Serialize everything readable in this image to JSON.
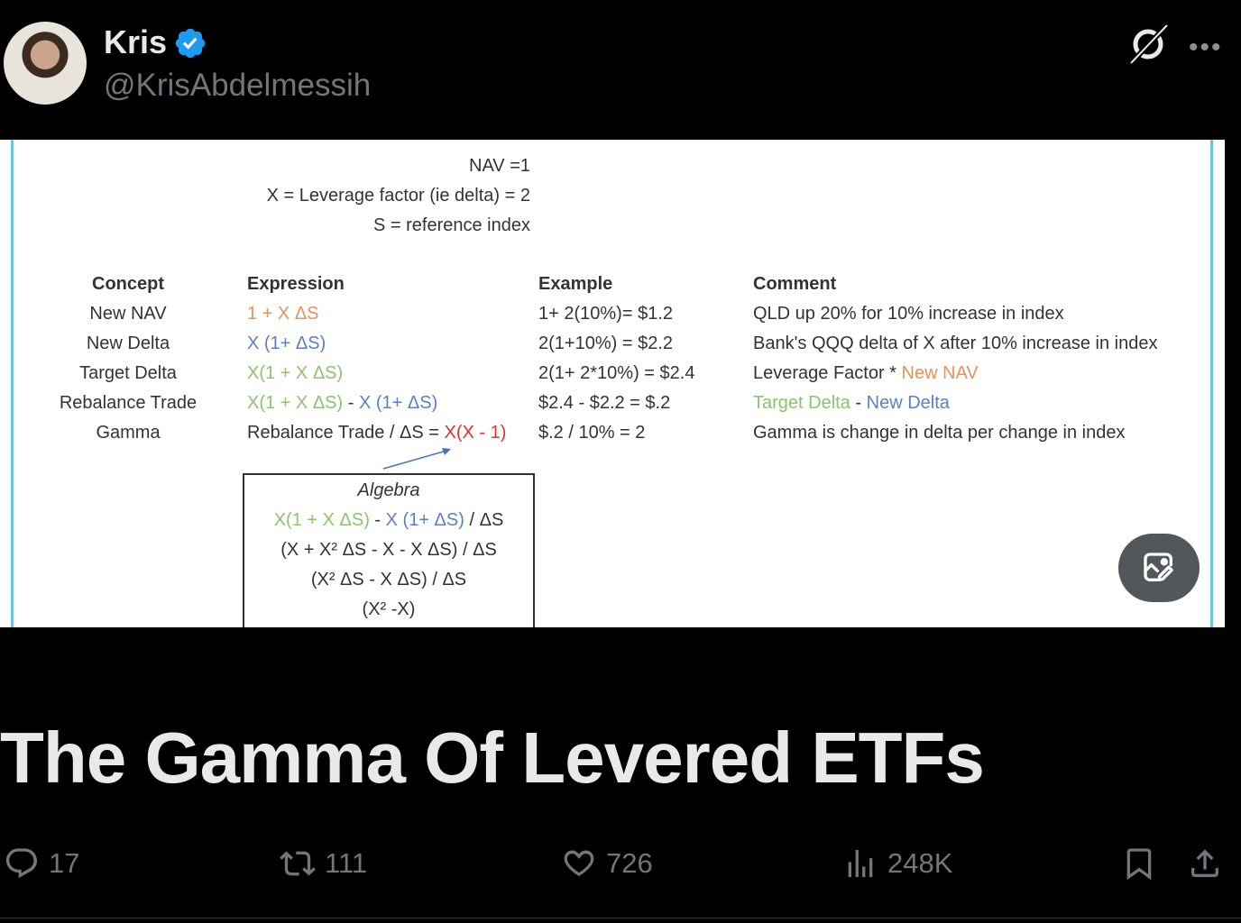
{
  "author": {
    "name": "Kris",
    "handle": "@KrisAbdelmessih",
    "verified": true
  },
  "header_icons": [
    "grok-icon",
    "more-icon"
  ],
  "image": {
    "defs": [
      "NAV =1",
      "X = Leverage factor (ie delta) = 2",
      "S = reference index"
    ],
    "headers": {
      "concept": "Concept",
      "expression": "Expression",
      "example": "Example",
      "comment": "Comment"
    },
    "rows": [
      {
        "concept": "New NAV",
        "expression": [
          {
            "text": "1 + X ΔS",
            "color": "#e8915a"
          }
        ],
        "example": "1+ 2(10%)= $1.2",
        "comment": [
          {
            "text": "QLD up 20% for 10% increase in index",
            "color": "#333333"
          }
        ]
      },
      {
        "concept": "New Delta",
        "expression": [
          {
            "text": "X (1+ ΔS)",
            "color": "#5b7fc4"
          }
        ],
        "example": "2(1+10%) = $2.2",
        "comment": [
          {
            "text": "Bank's QQQ delta of X after 10% increase in index",
            "color": "#333333"
          }
        ]
      },
      {
        "concept": "Target Delta",
        "expression": [
          {
            "text": "X(1 + X ΔS)",
            "color": "#8dc26f"
          }
        ],
        "example": "2(1+ 2*10%) = $2.4",
        "comment": [
          {
            "text": "Leverage Factor * ",
            "color": "#333333"
          },
          {
            "text": "New NAV",
            "color": "#e8915a"
          }
        ]
      },
      {
        "concept": "Rebalance Trade",
        "expression": [
          {
            "text": "X(1 + X ΔS)",
            "color": "#8dc26f"
          },
          {
            "text": " - ",
            "color": "#333333"
          },
          {
            "text": "X (1+ ΔS)",
            "color": "#5b7fc4"
          }
        ],
        "example": "$2.4 - $2.2 = $.2",
        "comment": [
          {
            "text": "Target Delta",
            "color": "#8dc26f"
          },
          {
            "text": " - ",
            "color": "#333333"
          },
          {
            "text": "New Delta",
            "color": "#5b7fc4"
          }
        ]
      },
      {
        "concept": "Gamma",
        "expression": [
          {
            "text": "Rebalance Trade / ΔS = ",
            "color": "#333333"
          },
          {
            "text": "X(X - 1)",
            "color": "#e03030"
          }
        ],
        "example": "$.2 / 10% = 2",
        "comment": [
          {
            "text": "Gamma is change in delta per change in index",
            "color": "#333333"
          }
        ]
      }
    ],
    "algebra": {
      "title": "Algebra",
      "line1": [
        {
          "text": "X(1 + X ΔS)",
          "color": "#8dc26f"
        },
        {
          "text": " - ",
          "color": "#333333"
        },
        {
          "text": "X (1+ ΔS)",
          "color": "#5b7fc4"
        },
        {
          "text": " / ΔS",
          "color": "#333333"
        }
      ],
      "line2": "(X + X² ΔS - X -  X ΔS) / ΔS",
      "line3": "(X² ΔS -  X ΔS) / ΔS",
      "line4": "(X² -X)"
    }
  },
  "edit_image_icon": "image-edit-icon",
  "title": "The Gamma Of Levered ETFs",
  "actions": {
    "replies": "17",
    "reposts": "111",
    "likes": "726",
    "views": "248K"
  }
}
